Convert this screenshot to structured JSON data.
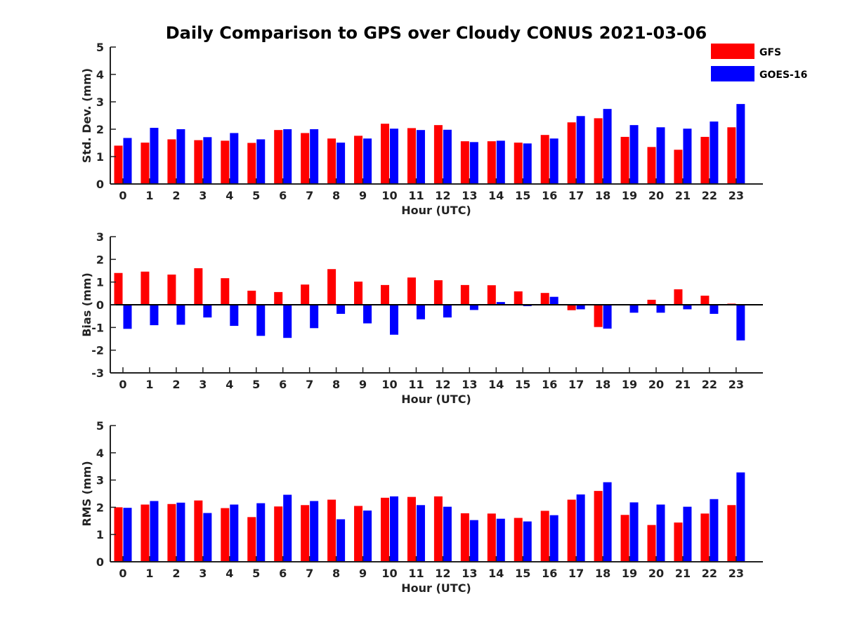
{
  "title": "Daily Comparison to GPS over Cloudy CONUS 2021-03-06",
  "legend": [
    {
      "name": "GFS",
      "color": "#ff0000"
    },
    {
      "name": "GOES-16",
      "color": "#0000ff"
    }
  ],
  "chart_data": [
    {
      "type": "bar",
      "ylabel": "Std. Dev. (mm)",
      "xlabel": "Hour (UTC)",
      "ylim": [
        0,
        5
      ],
      "yticks": [
        0,
        1,
        2,
        3,
        4,
        5
      ],
      "categories": [
        "0",
        "1",
        "2",
        "3",
        "4",
        "5",
        "6",
        "7",
        "8",
        "9",
        "10",
        "11",
        "12",
        "13",
        "14",
        "15",
        "16",
        "17",
        "18",
        "19",
        "20",
        "21",
        "22",
        "23"
      ],
      "series": [
        {
          "name": "GFS",
          "color": "#ff0000",
          "values": [
            1.4,
            1.51,
            1.63,
            1.6,
            1.58,
            1.5,
            1.97,
            1.86,
            1.66,
            1.76,
            2.2,
            2.04,
            2.15,
            1.56,
            1.56,
            1.51,
            1.79,
            2.25,
            2.4,
            1.72,
            1.35,
            1.25,
            1.72,
            2.07
          ]
        },
        {
          "name": "GOES-16",
          "color": "#0000ff",
          "values": [
            1.68,
            2.05,
            2.0,
            1.71,
            1.86,
            1.63,
            2.0,
            2.0,
            1.51,
            1.66,
            2.02,
            1.97,
            1.98,
            1.53,
            1.58,
            1.48,
            1.66,
            2.48,
            2.74,
            2.15,
            2.07,
            2.02,
            2.28,
            2.92
          ]
        }
      ]
    },
    {
      "type": "bar",
      "ylabel": "Bias (mm)",
      "xlabel": "Hour (UTC)",
      "ylim": [
        -3,
        3
      ],
      "yticks": [
        -3,
        -2,
        -1,
        0,
        1,
        2,
        3
      ],
      "categories": [
        "0",
        "1",
        "2",
        "3",
        "4",
        "5",
        "6",
        "7",
        "8",
        "9",
        "10",
        "11",
        "12",
        "13",
        "14",
        "15",
        "16",
        "17",
        "18",
        "19",
        "20",
        "21",
        "22",
        "23"
      ],
      "series": [
        {
          "name": "GFS",
          "color": "#ff0000",
          "values": [
            1.4,
            1.46,
            1.33,
            1.61,
            1.17,
            0.62,
            0.56,
            0.89,
            1.57,
            1.02,
            0.87,
            1.2,
            1.08,
            0.87,
            0.86,
            0.59,
            0.52,
            -0.24,
            -0.98,
            0.0,
            0.22,
            0.68,
            0.4,
            0.05
          ]
        },
        {
          "name": "GOES-16",
          "color": "#0000ff",
          "values": [
            -1.06,
            -0.9,
            -0.88,
            -0.56,
            -0.93,
            -1.37,
            -1.46,
            -1.03,
            -0.4,
            -0.82,
            -1.32,
            -0.64,
            -0.56,
            -0.23,
            0.12,
            -0.06,
            0.35,
            -0.2,
            -1.05,
            -0.35,
            -0.35,
            -0.2,
            -0.4,
            -1.57
          ]
        }
      ]
    },
    {
      "type": "bar",
      "ylabel": "RMS (mm)",
      "xlabel": "Hour (UTC)",
      "ylim": [
        0,
        5
      ],
      "yticks": [
        0,
        1,
        2,
        3,
        4,
        5
      ],
      "categories": [
        "0",
        "1",
        "2",
        "3",
        "4",
        "5",
        "6",
        "7",
        "8",
        "9",
        "10",
        "11",
        "12",
        "13",
        "14",
        "15",
        "16",
        "17",
        "18",
        "19",
        "20",
        "21",
        "22",
        "23"
      ],
      "series": [
        {
          "name": "GFS",
          "color": "#ff0000",
          "values": [
            2.0,
            2.1,
            2.12,
            2.25,
            1.97,
            1.64,
            2.03,
            2.08,
            2.28,
            2.05,
            2.35,
            2.38,
            2.4,
            1.78,
            1.77,
            1.61,
            1.87,
            2.28,
            2.6,
            1.72,
            1.35,
            1.44,
            1.77,
            2.08
          ]
        },
        {
          "name": "GOES-16",
          "color": "#0000ff",
          "values": [
            1.98,
            2.23,
            2.17,
            1.79,
            2.1,
            2.15,
            2.46,
            2.23,
            1.56,
            1.88,
            2.4,
            2.08,
            2.02,
            1.53,
            1.58,
            1.48,
            1.71,
            2.47,
            2.92,
            2.18,
            2.1,
            2.02,
            2.3,
            3.28
          ]
        }
      ]
    }
  ]
}
